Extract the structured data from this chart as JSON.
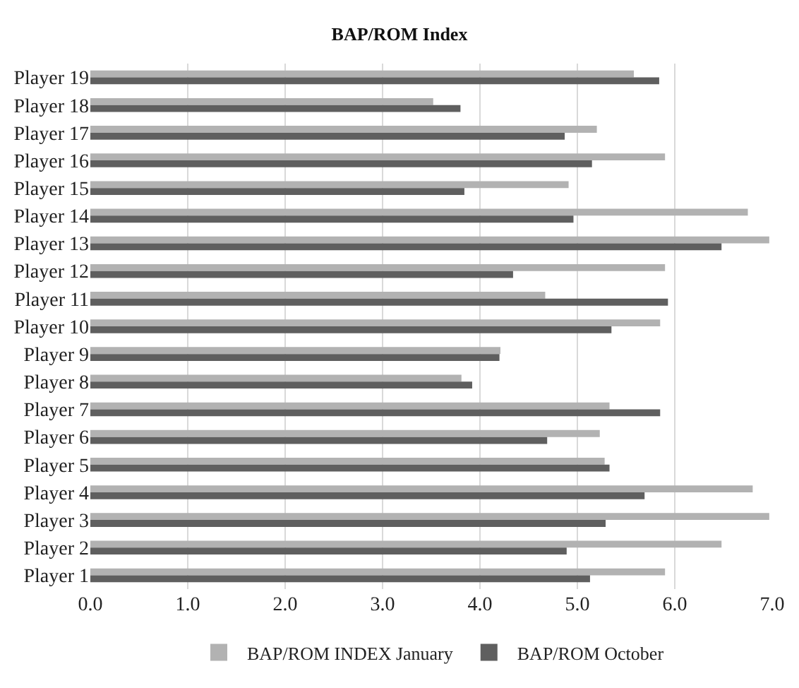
{
  "chart_data": {
    "type": "bar",
    "orientation": "horizontal",
    "title": "BAP/ROM Index",
    "categories": [
      "Player 19",
      "Player 18",
      "Player 17",
      "Player 16",
      "Player 15",
      "Player 14",
      "Player 13",
      "Player 12",
      "Player 11",
      "Player 10",
      "Player 9",
      "Player 8",
      "Player 7",
      "Player 6",
      "Player 5",
      "Player 4",
      "Player 3",
      "Player 2",
      "Player 1"
    ],
    "series": [
      {
        "name": "BAP/ROM INDEX January",
        "color": "#b2b2b2",
        "values": [
          5.58,
          3.52,
          5.2,
          5.9,
          4.91,
          6.75,
          6.97,
          5.9,
          4.67,
          5.85,
          4.21,
          3.81,
          5.33,
          5.23,
          5.28,
          6.8,
          6.97,
          6.48,
          5.9
        ]
      },
      {
        "name": "BAP/ROM October",
        "color": "#5f5f5f",
        "values": [
          5.84,
          3.8,
          4.87,
          5.15,
          3.84,
          4.96,
          6.48,
          4.34,
          5.93,
          5.35,
          4.2,
          3.92,
          5.85,
          4.69,
          5.33,
          5.69,
          5.29,
          4.89,
          5.13
        ]
      }
    ],
    "xlim": [
      0,
      7
    ],
    "xticks": [
      {
        "value": 0,
        "label": "0.0"
      },
      {
        "value": 1,
        "label": "1.0"
      },
      {
        "value": 2,
        "label": "2.0"
      },
      {
        "value": 3,
        "label": "3.0"
      },
      {
        "value": 4,
        "label": "4.0"
      },
      {
        "value": 5,
        "label": "5.0"
      },
      {
        "value": 6,
        "label": "6.0"
      },
      {
        "value": 7,
        "label": "7.0"
      }
    ],
    "grid": "x",
    "legend": "bottom"
  }
}
